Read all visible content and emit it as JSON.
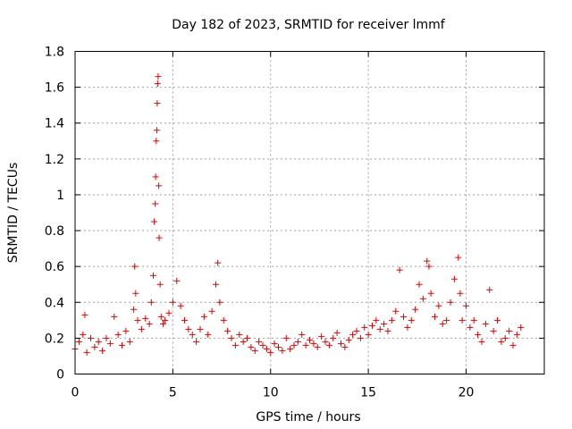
{
  "chart_data": {
    "type": "scatter",
    "title": "Day 182 of 2023, SRMTID for receiver lmmf",
    "xlabel": "GPS time / hours",
    "ylabel": "SRMTID / TECUs",
    "xlim": [
      0,
      24
    ],
    "ylim": [
      0,
      1.8
    ],
    "xticks": [
      0,
      5,
      10,
      15,
      20
    ],
    "xtick_labels": [
      "0",
      "5",
      "10",
      "15",
      "20"
    ],
    "yticks": [
      0,
      0.2,
      0.4,
      0.6,
      0.8,
      1,
      1.2,
      1.4,
      1.6,
      1.8
    ],
    "ytick_labels": [
      "0",
      "0.2",
      "0.4",
      "0.6",
      "0.8",
      "1",
      "1.2",
      "1.4",
      "1.6",
      "1.8"
    ],
    "grid": true,
    "marker": "plus",
    "series": [
      {
        "name": "lmmf",
        "color": "#e00000",
        "x": [
          0.0,
          0.2,
          0.4,
          0.5,
          0.6,
          0.8,
          1.0,
          1.2,
          1.4,
          1.6,
          1.8,
          2.0,
          2.2,
          2.4,
          2.6,
          2.8,
          3.0,
          3.05,
          3.1,
          3.2,
          3.4,
          3.6,
          3.8,
          3.9,
          4.0,
          4.05,
          4.1,
          4.12,
          4.15,
          4.18,
          4.2,
          4.22,
          4.25,
          4.28,
          4.3,
          4.35,
          4.4,
          4.5,
          4.6,
          4.8,
          5.0,
          5.2,
          5.4,
          5.6,
          5.8,
          6.0,
          6.2,
          6.4,
          6.6,
          6.8,
          7.0,
          7.2,
          7.3,
          7.4,
          7.6,
          7.8,
          8.0,
          8.2,
          8.4,
          8.6,
          8.8,
          9.0,
          9.2,
          9.4,
          9.6,
          9.8,
          10.0,
          10.2,
          10.4,
          10.6,
          10.8,
          11.0,
          11.2,
          11.4,
          11.6,
          11.8,
          12.0,
          12.2,
          12.4,
          12.6,
          12.8,
          13.0,
          13.2,
          13.4,
          13.6,
          13.8,
          14.0,
          14.2,
          14.4,
          14.6,
          14.8,
          15.0,
          15.2,
          15.4,
          15.6,
          15.8,
          16.0,
          16.2,
          16.4,
          16.6,
          16.8,
          17.0,
          17.2,
          17.4,
          17.6,
          17.8,
          18.0,
          18.1,
          18.2,
          18.4,
          18.6,
          18.8,
          19.0,
          19.2,
          19.4,
          19.6,
          19.7,
          19.8,
          20.0,
          20.2,
          20.4,
          20.6,
          20.8,
          21.0,
          21.2,
          21.4,
          21.6,
          21.8,
          22.0,
          22.2,
          22.4,
          22.6,
          22.8
        ],
        "y": [
          0.14,
          0.18,
          0.22,
          0.33,
          0.12,
          0.2,
          0.15,
          0.18,
          0.13,
          0.2,
          0.17,
          0.32,
          0.22,
          0.16,
          0.24,
          0.18,
          0.36,
          0.6,
          0.45,
          0.3,
          0.25,
          0.31,
          0.28,
          0.4,
          0.55,
          0.85,
          0.95,
          1.1,
          1.3,
          1.36,
          1.51,
          1.62,
          1.66,
          1.05,
          0.76,
          0.5,
          0.32,
          0.28,
          0.3,
          0.34,
          0.4,
          0.52,
          0.38,
          0.3,
          0.25,
          0.22,
          0.18,
          0.25,
          0.32,
          0.22,
          0.35,
          0.5,
          0.62,
          0.4,
          0.3,
          0.24,
          0.2,
          0.16,
          0.22,
          0.18,
          0.2,
          0.15,
          0.13,
          0.18,
          0.16,
          0.14,
          0.12,
          0.17,
          0.15,
          0.13,
          0.2,
          0.14,
          0.16,
          0.18,
          0.22,
          0.16,
          0.19,
          0.17,
          0.15,
          0.21,
          0.18,
          0.16,
          0.2,
          0.23,
          0.17,
          0.15,
          0.19,
          0.22,
          0.24,
          0.2,
          0.26,
          0.22,
          0.27,
          0.3,
          0.25,
          0.28,
          0.24,
          0.3,
          0.35,
          0.58,
          0.32,
          0.26,
          0.3,
          0.36,
          0.5,
          0.42,
          0.63,
          0.6,
          0.45,
          0.32,
          0.38,
          0.28,
          0.3,
          0.4,
          0.53,
          0.65,
          0.45,
          0.3,
          0.38,
          0.26,
          0.3,
          0.22,
          0.18,
          0.28,
          0.47,
          0.24,
          0.3,
          0.18,
          0.2,
          0.24,
          0.16,
          0.22,
          0.26
        ]
      }
    ]
  }
}
